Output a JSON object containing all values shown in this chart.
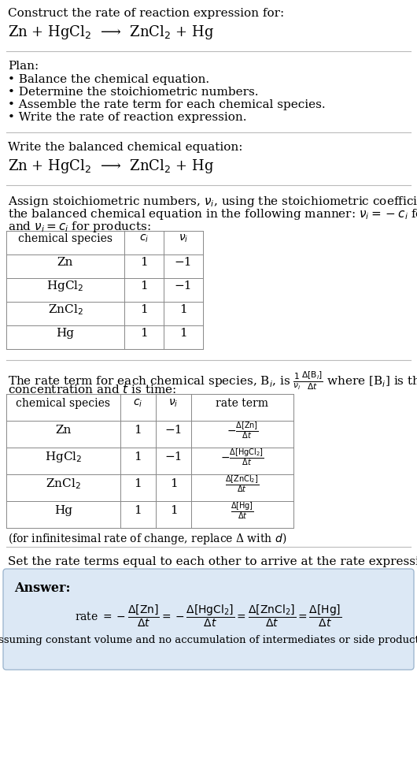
{
  "title_line1": "Construct the rate of reaction expression for:",
  "title_line2": "Zn + HgCl$_2$  ⟶  ZnCl$_2$ + Hg",
  "plan_header": "Plan:",
  "plan_items": [
    "• Balance the chemical equation.",
    "• Determine the stoichiometric numbers.",
    "• Assemble the rate term for each chemical species.",
    "• Write the rate of reaction expression."
  ],
  "balanced_header": "Write the balanced chemical equation:",
  "balanced_eq": "Zn + HgCl$_2$  ⟶  ZnCl$_2$ + Hg",
  "stoich_intro1": "Assign stoichiometric numbers, $\\nu_i$, using the stoichiometric coefficients, $c_i$, from",
  "stoich_intro2": "the balanced chemical equation in the following manner: $\\nu_i = -c_i$ for reactants",
  "stoich_intro3": "and $\\nu_i = c_i$ for products:",
  "table1_headers": [
    "chemical species",
    "$c_i$",
    "$\\nu_i$"
  ],
  "table1_rows": [
    [
      "Zn",
      "1",
      "−1"
    ],
    [
      "HgCl$_2$",
      "1",
      "−1"
    ],
    [
      "ZnCl$_2$",
      "1",
      "1"
    ],
    [
      "Hg",
      "1",
      "1"
    ]
  ],
  "rate_intro1": "The rate term for each chemical species, B$_i$, is $\\frac{1}{\\nu_i}\\frac{\\Delta[\\mathrm{B}_i]}{\\Delta t}$ where [B$_i$] is the amount",
  "rate_intro2": "concentration and $t$ is time:",
  "table2_headers": [
    "chemical species",
    "$c_i$",
    "$\\nu_i$",
    "rate term"
  ],
  "table2_rows": [
    [
      "Zn",
      "1",
      "−1",
      "$-\\frac{\\Delta[\\mathrm{Zn}]}{\\Delta t}$"
    ],
    [
      "HgCl$_2$",
      "1",
      "−1",
      "$-\\frac{\\Delta[\\mathrm{HgCl_2}]}{\\Delta t}$"
    ],
    [
      "ZnCl$_2$",
      "1",
      "1",
      "$\\frac{\\Delta[\\mathrm{ZnCl_2}]}{\\Delta t}$"
    ],
    [
      "Hg",
      "1",
      "1",
      "$\\frac{\\Delta[\\mathrm{Hg}]}{\\Delta t}$"
    ]
  ],
  "infinitesimal_note": "(for infinitesimal rate of change, replace Δ with $d$)",
  "rate_set_intro": "Set the rate terms equal to each other to arrive at the rate expression:",
  "answer_label": "Answer:",
  "rate_expr1": "rate $= -\\dfrac{\\Delta[\\mathrm{Zn}]}{\\Delta t} = -\\dfrac{\\Delta[\\mathrm{HgCl_2}]}{\\Delta t} = \\dfrac{\\Delta[\\mathrm{ZnCl_2}]}{\\Delta t} = \\dfrac{\\Delta[\\mathrm{Hg}]}{\\Delta t}$",
  "answer_note": "(assuming constant volume and no accumulation of intermediates or side products)",
  "bg_color": "#ffffff",
  "answer_bg_color": "#dce8f5",
  "table_border_color": "#888888",
  "text_color": "#000000",
  "sep_color": "#bbbbbb"
}
